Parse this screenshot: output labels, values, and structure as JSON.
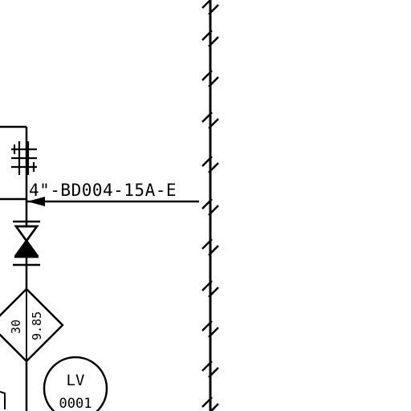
{
  "drawing": {
    "line_number": "4\"-BD004-15A-E",
    "diamond_top_value": "30",
    "diamond_bottom_value": "9.85",
    "instrument_tag_type": "LV",
    "instrument_tag_number": "0001"
  },
  "colors": {
    "ink": "#000000",
    "paper": "#ffffff"
  },
  "icons": {
    "valve": "gate-valve-icon",
    "line_break": "signal-line-break-icon",
    "flow_arrow": "flow-arrow-icon",
    "hatch": "hash-symbol-icon"
  }
}
